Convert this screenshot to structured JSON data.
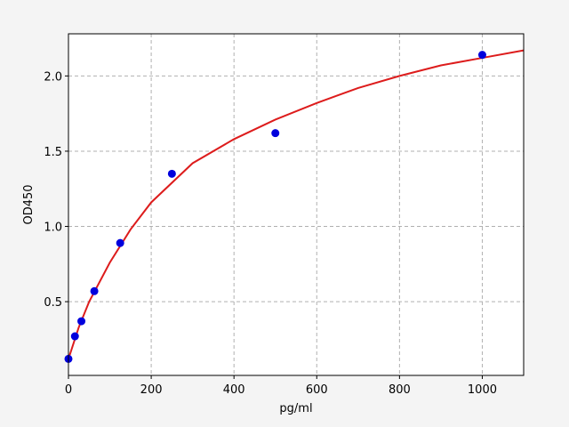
{
  "chart_data": {
    "type": "scatter",
    "xlabel": "pg/ml",
    "ylabel": "OD450",
    "xlim": [
      0,
      1100
    ],
    "ylim": [
      0.01,
      2.28
    ],
    "xticks": [
      0,
      200,
      400,
      600,
      800,
      1000
    ],
    "yticks": [
      0.5,
      {
        "value": 1.0,
        "label": "1.0"
      },
      1.5,
      {
        "value": 2.0,
        "label": "2.0"
      }
    ],
    "grid": true,
    "series": [
      {
        "type": "line",
        "color": "#dd1c1c",
        "x": [
          0,
          25,
          50,
          100,
          150,
          200,
          300,
          400,
          500,
          600,
          700,
          800,
          900,
          1000,
          1100
        ],
        "values": [
          0.12,
          0.33,
          0.5,
          0.76,
          0.98,
          1.16,
          1.42,
          1.58,
          1.71,
          1.82,
          1.92,
          2.0,
          2.07,
          2.12,
          2.17
        ]
      },
      {
        "type": "scatter",
        "color": "#0000dd",
        "x": [
          0,
          15.6,
          31.25,
          62.5,
          125,
          250,
          500,
          1000
        ],
        "values": [
          0.12,
          0.27,
          0.37,
          0.57,
          0.89,
          1.35,
          1.62,
          2.14
        ]
      }
    ]
  }
}
